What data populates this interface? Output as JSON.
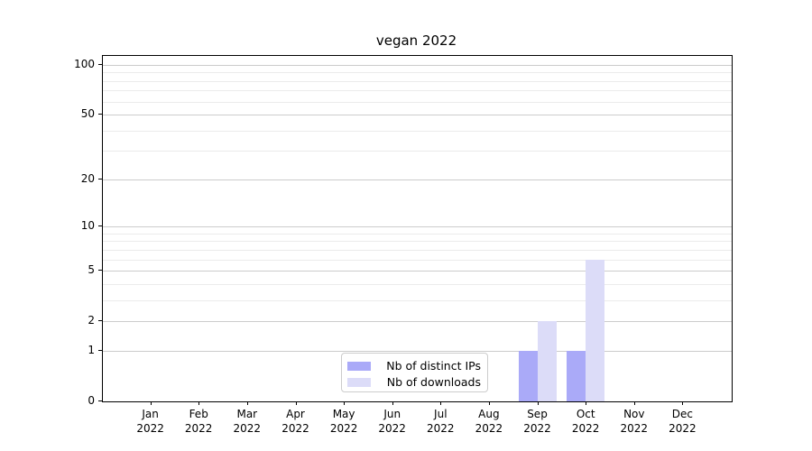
{
  "chart_data": {
    "type": "bar",
    "title": "vegan 2022",
    "categories": [
      "Jan 2022",
      "Feb 2022",
      "Mar 2022",
      "Apr 2022",
      "May 2022",
      "Jun 2022",
      "Jul 2022",
      "Aug 2022",
      "Sep 2022",
      "Oct 2022",
      "Nov 2022",
      "Dec 2022"
    ],
    "x_tick_months": [
      "Jan",
      "Feb",
      "Mar",
      "Apr",
      "May",
      "Jun",
      "Jul",
      "Aug",
      "Sep",
      "Oct",
      "Nov",
      "Dec"
    ],
    "x_tick_year": "2022",
    "series": [
      {
        "name": "Nb of distinct IPs",
        "color": "#aaaaf8",
        "values": [
          0,
          0,
          0,
          0,
          0,
          0,
          0,
          0,
          1,
          1,
          0,
          0
        ]
      },
      {
        "name": "Nb of downloads",
        "color": "#dcdcf8",
        "values": [
          0,
          0,
          0,
          0,
          0,
          0,
          0,
          0,
          2,
          6,
          0,
          0
        ]
      }
    ],
    "xlabel": "",
    "ylabel": "",
    "yscale": "log1p",
    "yticks": [
      0,
      1,
      2,
      5,
      10,
      20,
      50,
      100
    ],
    "minor_yticks": [
      3,
      4,
      6,
      7,
      8,
      9,
      30,
      40,
      60,
      70,
      80,
      90
    ],
    "ylim": [
      0,
      113
    ],
    "grid": "horizontal",
    "legend_position": "lower center",
    "colors": {
      "frame": "#000000",
      "grid_major": "#cccccc",
      "grid_minor": "#ebebeb",
      "background": "#ffffff",
      "text": "#000000",
      "legend_border": "#cccccc"
    }
  }
}
